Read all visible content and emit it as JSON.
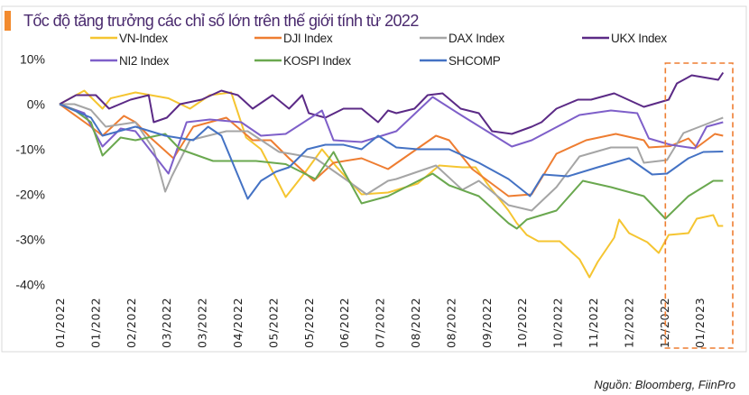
{
  "chart_data": {
    "type": "line",
    "title": "Tốc độ tăng trưởng các chỉ số lớn trên thế giới tính từ 2022",
    "source": "Nguồn: Bloomberg, FiinPro",
    "xlabel": "",
    "ylabel": "",
    "ylim": [
      -40,
      10
    ],
    "y_ticks": [
      "10%",
      "0%",
      "-10%",
      "-20%",
      "-30%",
      "-40%"
    ],
    "x_ticks": [
      "01/2022",
      "01/2022",
      "02/2022",
      "03/2022",
      "03/2022",
      "04/2022",
      "05/2022",
      "05/2022",
      "06/2022",
      "07/2022",
      "08/2022",
      "08/2022",
      "09/2022",
      "10/2022",
      "10/2022",
      "11/2022",
      "12/2022",
      "12/2022",
      "01/2023"
    ],
    "x_range": [
      "2022-01-03",
      "2023-02-11"
    ],
    "grid": false,
    "legend": "top",
    "highlight_box": {
      "from": "2023-01-05",
      "to": "2023-02-15",
      "color": "#ee7d31",
      "style": "dashed"
    },
    "series": [
      {
        "name": "VN-Index",
        "color": "#f5c531",
        "points": [
          [
            "2022-01-03",
            0
          ],
          [
            "2022-01-18",
            3
          ],
          [
            "2022-01-29",
            -1
          ],
          [
            "2022-02-03",
            1.3
          ],
          [
            "2022-02-18",
            2.6
          ],
          [
            "2022-03-10",
            1.3
          ],
          [
            "2022-03-23",
            -1
          ],
          [
            "2022-04-04",
            2
          ],
          [
            "2022-04-17",
            2.6
          ],
          [
            "2022-04-26",
            -7.4
          ],
          [
            "2022-05-05",
            -10
          ],
          [
            "2022-05-15",
            -17
          ],
          [
            "2022-05-20",
            -20.6
          ],
          [
            "2022-06-01",
            -15
          ],
          [
            "2022-06-11",
            -10
          ],
          [
            "2022-06-20",
            -14
          ],
          [
            "2022-07-05",
            -20
          ],
          [
            "2022-07-21",
            -19.6
          ],
          [
            "2022-08-08",
            -17.6
          ],
          [
            "2022-08-21",
            -13.6
          ],
          [
            "2022-09-04",
            -14
          ],
          [
            "2022-09-12",
            -14
          ],
          [
            "2022-09-19",
            -17.6
          ],
          [
            "2022-10-02",
            -23.6
          ],
          [
            "2022-10-07",
            -26.4
          ],
          [
            "2022-10-13",
            -29
          ],
          [
            "2022-10-20",
            -30.4
          ],
          [
            "2022-11-02",
            -30.4
          ],
          [
            "2022-11-14",
            -34.4
          ],
          [
            "2022-11-20",
            -38.4
          ],
          [
            "2022-11-25",
            -35
          ],
          [
            "2022-12-05",
            -29.6
          ],
          [
            "2022-12-08",
            -25.6
          ],
          [
            "2022-12-14",
            -28.6
          ],
          [
            "2022-12-25",
            -30.6
          ],
          [
            "2023-01-01",
            -33
          ],
          [
            "2023-01-07",
            -29
          ],
          [
            "2023-01-19",
            -28.6
          ],
          [
            "2023-01-24",
            -25.4
          ],
          [
            "2023-02-03",
            -24.6
          ],
          [
            "2023-02-06",
            -27
          ],
          [
            "2023-02-09",
            -27
          ]
        ]
      },
      {
        "name": "DJI Index",
        "color": "#ee7d31",
        "points": [
          [
            "2022-01-03",
            0
          ],
          [
            "2022-01-22",
            -5
          ],
          [
            "2022-01-29",
            -7
          ],
          [
            "2022-02-11",
            -2.6
          ],
          [
            "2022-02-18",
            -4
          ],
          [
            "2022-02-27",
            -7.4
          ],
          [
            "2022-03-13",
            -12
          ],
          [
            "2022-03-25",
            -5
          ],
          [
            "2022-04-14",
            -3
          ],
          [
            "2022-04-30",
            -8
          ],
          [
            "2022-05-11",
            -8
          ],
          [
            "2022-05-22",
            -12
          ],
          [
            "2022-06-06",
            -17
          ],
          [
            "2022-06-18",
            -13
          ],
          [
            "2022-07-05",
            -12
          ],
          [
            "2022-07-21",
            -14.4
          ],
          [
            "2022-08-19",
            -7
          ],
          [
            "2022-08-27",
            -8
          ],
          [
            "2022-09-10",
            -14.4
          ],
          [
            "2022-10-02",
            -20.4
          ],
          [
            "2022-10-16",
            -20
          ],
          [
            "2022-10-31",
            -11
          ],
          [
            "2022-11-18",
            -8
          ],
          [
            "2022-12-06",
            -6.6
          ],
          [
            "2022-12-23",
            -8
          ],
          [
            "2022-12-26",
            -9.6
          ],
          [
            "2023-01-08",
            -9.3
          ],
          [
            "2023-01-19",
            -7.6
          ],
          [
            "2023-01-24",
            -9.6
          ],
          [
            "2023-02-04",
            -6.6
          ],
          [
            "2023-02-09",
            -7
          ]
        ]
      },
      {
        "name": "DAX Index",
        "color": "#a5a5a5",
        "points": [
          [
            "2022-01-03",
            0
          ],
          [
            "2022-01-12",
            0
          ],
          [
            "2022-01-22",
            -1.3
          ],
          [
            "2022-01-31",
            -5
          ],
          [
            "2022-02-18",
            -4
          ],
          [
            "2022-03-01",
            -10
          ],
          [
            "2022-03-08",
            -19.4
          ],
          [
            "2022-03-12",
            -16
          ],
          [
            "2022-03-23",
            -8
          ],
          [
            "2022-04-14",
            -6
          ],
          [
            "2022-04-27",
            -6
          ],
          [
            "2022-05-16",
            -10.6
          ],
          [
            "2022-05-23",
            -11
          ],
          [
            "2022-06-07",
            -12
          ],
          [
            "2022-06-25",
            -16.6
          ],
          [
            "2022-07-08",
            -20
          ],
          [
            "2022-07-21",
            -17
          ],
          [
            "2022-07-26",
            -16.6
          ],
          [
            "2022-08-19",
            -13.6
          ],
          [
            "2022-09-04",
            -19
          ],
          [
            "2022-09-14",
            -17
          ],
          [
            "2022-10-02",
            -22.4
          ],
          [
            "2022-10-16",
            -23.6
          ],
          [
            "2022-10-31",
            -18.4
          ],
          [
            "2022-11-14",
            -11.6
          ],
          [
            "2022-12-03",
            -9.6
          ],
          [
            "2022-12-19",
            -9.6
          ],
          [
            "2022-12-23",
            -13
          ],
          [
            "2023-01-06",
            -12.4
          ],
          [
            "2023-01-16",
            -6.4
          ],
          [
            "2023-01-23",
            -5.4
          ],
          [
            "2023-02-06",
            -3.4
          ],
          [
            "2023-02-09",
            -3
          ]
        ]
      },
      {
        "name": "UKX Index",
        "color": "#5b2a86",
        "points": [
          [
            "2022-01-03",
            0
          ],
          [
            "2022-01-13",
            2
          ],
          [
            "2022-01-25",
            2
          ],
          [
            "2022-02-02",
            -1
          ],
          [
            "2022-02-15",
            1
          ],
          [
            "2022-02-26",
            2
          ],
          [
            "2022-03-01",
            -4
          ],
          [
            "2022-03-09",
            -3
          ],
          [
            "2022-03-17",
            0
          ],
          [
            "2022-03-30",
            1
          ],
          [
            "2022-04-11",
            3
          ],
          [
            "2022-04-21",
            2
          ],
          [
            "2022-04-30",
            -1
          ],
          [
            "2022-05-12",
            2
          ],
          [
            "2022-05-22",
            -1
          ],
          [
            "2022-05-30",
            2
          ],
          [
            "2022-06-03",
            -2
          ],
          [
            "2022-06-13",
            -3
          ],
          [
            "2022-06-24",
            -1
          ],
          [
            "2022-07-05",
            -1
          ],
          [
            "2022-07-15",
            -4
          ],
          [
            "2022-07-21",
            -1.4
          ],
          [
            "2022-07-26",
            -2
          ],
          [
            "2022-08-06",
            -1
          ],
          [
            "2022-08-14",
            2
          ],
          [
            "2022-08-23",
            2.4
          ],
          [
            "2022-09-03",
            -1
          ],
          [
            "2022-09-14",
            -2
          ],
          [
            "2022-09-22",
            -6
          ],
          [
            "2022-10-04",
            -6.6
          ],
          [
            "2022-10-16",
            -5
          ],
          [
            "2022-10-22",
            -4
          ],
          [
            "2022-10-31",
            -1
          ],
          [
            "2022-11-13",
            1
          ],
          [
            "2022-11-21",
            1
          ],
          [
            "2022-12-05",
            2.4
          ],
          [
            "2022-12-23",
            -0.6
          ],
          [
            "2023-01-07",
            1
          ],
          [
            "2023-01-12",
            4.6
          ],
          [
            "2023-01-21",
            6.4
          ],
          [
            "2023-02-06",
            5.4
          ],
          [
            "2023-02-09",
            7
          ]
        ]
      },
      {
        "name": "NI2 Index",
        "color": "#7e5fc9",
        "points": [
          [
            "2022-01-03",
            0
          ],
          [
            "2022-01-18",
            -2
          ],
          [
            "2022-01-29",
            -9.4
          ],
          [
            "2022-02-09",
            -5.4
          ],
          [
            "2022-02-18",
            -6
          ],
          [
            "2022-03-10",
            -15.4
          ],
          [
            "2022-03-21",
            -4
          ],
          [
            "2022-04-04",
            -3.4
          ],
          [
            "2022-04-23",
            -4
          ],
          [
            "2022-05-05",
            -7
          ],
          [
            "2022-05-20",
            -6.6
          ],
          [
            "2022-06-11",
            -1.4
          ],
          [
            "2022-06-18",
            -8
          ],
          [
            "2022-07-05",
            -8.4
          ],
          [
            "2022-07-26",
            -6
          ],
          [
            "2022-08-17",
            1.6
          ],
          [
            "2022-09-04",
            -2.6
          ],
          [
            "2022-10-04",
            -9.4
          ],
          [
            "2022-10-16",
            -8
          ],
          [
            "2022-11-14",
            -2.4
          ],
          [
            "2022-12-03",
            -1.4
          ],
          [
            "2022-12-19",
            -2
          ],
          [
            "2022-12-26",
            -7.6
          ],
          [
            "2023-01-08",
            -9
          ],
          [
            "2023-01-23",
            -9.8
          ],
          [
            "2023-01-30",
            -5
          ],
          [
            "2023-02-09",
            -4
          ]
        ]
      },
      {
        "name": "KOSPI Index",
        "color": "#6aa84f",
        "points": [
          [
            "2022-01-03",
            0
          ],
          [
            "2022-01-12",
            -1.3
          ],
          [
            "2022-01-22",
            -4
          ],
          [
            "2022-01-29",
            -11.4
          ],
          [
            "2022-02-09",
            -7.4
          ],
          [
            "2022-02-18",
            -8
          ],
          [
            "2022-03-08",
            -6.6
          ],
          [
            "2022-03-17",
            -10
          ],
          [
            "2022-04-06",
            -12.6
          ],
          [
            "2022-05-02",
            -12.6
          ],
          [
            "2022-05-20",
            -13.3
          ],
          [
            "2022-06-07",
            -16.6
          ],
          [
            "2022-06-18",
            -10.6
          ],
          [
            "2022-06-25",
            -15.4
          ],
          [
            "2022-07-05",
            -22
          ],
          [
            "2022-07-21",
            -20.4
          ],
          [
            "2022-08-17",
            -15.4
          ],
          [
            "2022-08-27",
            -18
          ],
          [
            "2022-09-14",
            -20.4
          ],
          [
            "2022-10-02",
            -26.4
          ],
          [
            "2022-10-07",
            -27.6
          ],
          [
            "2022-10-13",
            -25.6
          ],
          [
            "2022-10-31",
            -23.6
          ],
          [
            "2022-11-16",
            -17
          ],
          [
            "2022-12-03",
            -18.4
          ],
          [
            "2022-12-23",
            -20.4
          ],
          [
            "2023-01-05",
            -25.4
          ],
          [
            "2023-01-19",
            -20.4
          ],
          [
            "2023-02-03",
            -17
          ],
          [
            "2023-02-09",
            -17
          ]
        ]
      },
      {
        "name": "SHCOMP",
        "color": "#4472c4",
        "points": [
          [
            "2022-01-03",
            0
          ],
          [
            "2022-01-22",
            -3
          ],
          [
            "2022-01-29",
            -7
          ],
          [
            "2022-02-18",
            -5
          ],
          [
            "2022-03-08",
            -7
          ],
          [
            "2022-03-25",
            -8
          ],
          [
            "2022-04-03",
            -5
          ],
          [
            "2022-04-11",
            -7
          ],
          [
            "2022-04-19",
            -14
          ],
          [
            "2022-04-27",
            -21
          ],
          [
            "2022-05-05",
            -17
          ],
          [
            "2022-05-14",
            -15
          ],
          [
            "2022-05-22",
            -14
          ],
          [
            "2022-06-02",
            -10
          ],
          [
            "2022-06-13",
            -9
          ],
          [
            "2022-06-24",
            -9
          ],
          [
            "2022-07-05",
            -10
          ],
          [
            "2022-07-15",
            -7
          ],
          [
            "2022-07-26",
            -9.6
          ],
          [
            "2022-08-08",
            -10
          ],
          [
            "2022-08-27",
            -10
          ],
          [
            "2022-09-14",
            -13
          ],
          [
            "2022-10-02",
            -16.6
          ],
          [
            "2022-10-15",
            -20.4
          ],
          [
            "2022-10-23",
            -15.6
          ],
          [
            "2022-11-07",
            -16
          ],
          [
            "2022-11-25",
            -14
          ],
          [
            "2022-12-14",
            -12
          ],
          [
            "2022-12-28",
            -15.6
          ],
          [
            "2023-01-06",
            -15.4
          ],
          [
            "2023-01-19",
            -12
          ],
          [
            "2023-01-28",
            -10.6
          ],
          [
            "2023-02-09",
            -10.5
          ]
        ]
      }
    ]
  }
}
